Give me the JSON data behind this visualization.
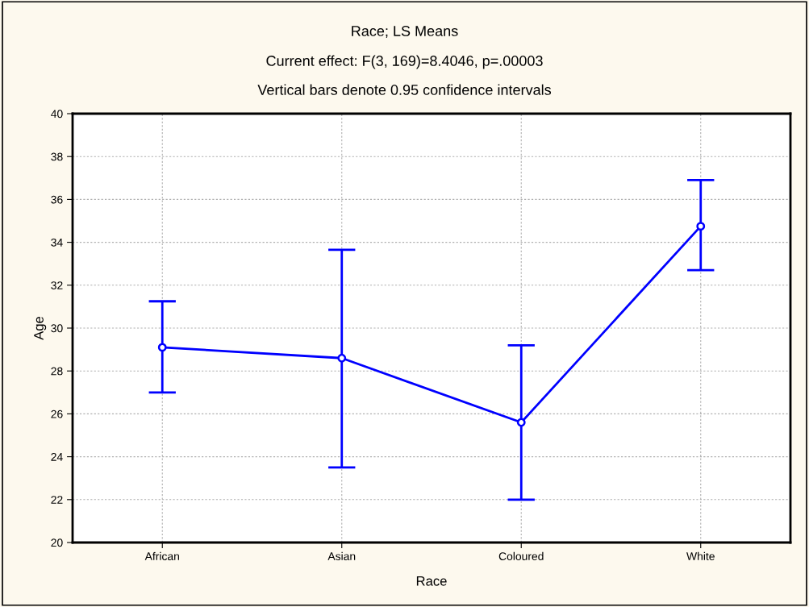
{
  "chart_data": {
    "type": "line",
    "title": "Race; LS Means",
    "subtitle": "Current effect: F(3, 169)=8.4046, p=.00003",
    "annotations": [
      "Vertical bars denote 0.95 confidence intervals"
    ],
    "xlabel": "Race",
    "ylabel": "Age",
    "categories": [
      "African",
      "Asian",
      "Coloured",
      "White"
    ],
    "series": [
      {
        "color": "#0000ff",
        "values": [
          29.1,
          28.6,
          25.6,
          34.75
        ],
        "errors": [
          [
            27.0,
            31.25
          ],
          [
            23.5,
            33.65
          ],
          [
            22.0,
            29.2
          ],
          [
            32.7,
            36.9
          ]
        ]
      }
    ],
    "ylim": [
      20,
      40
    ],
    "yticks": [
      20,
      22,
      24,
      26,
      28,
      30,
      32,
      34,
      36,
      38,
      40
    ],
    "grid": true,
    "marker": "circle",
    "line_style": "solid",
    "legend": false
  }
}
